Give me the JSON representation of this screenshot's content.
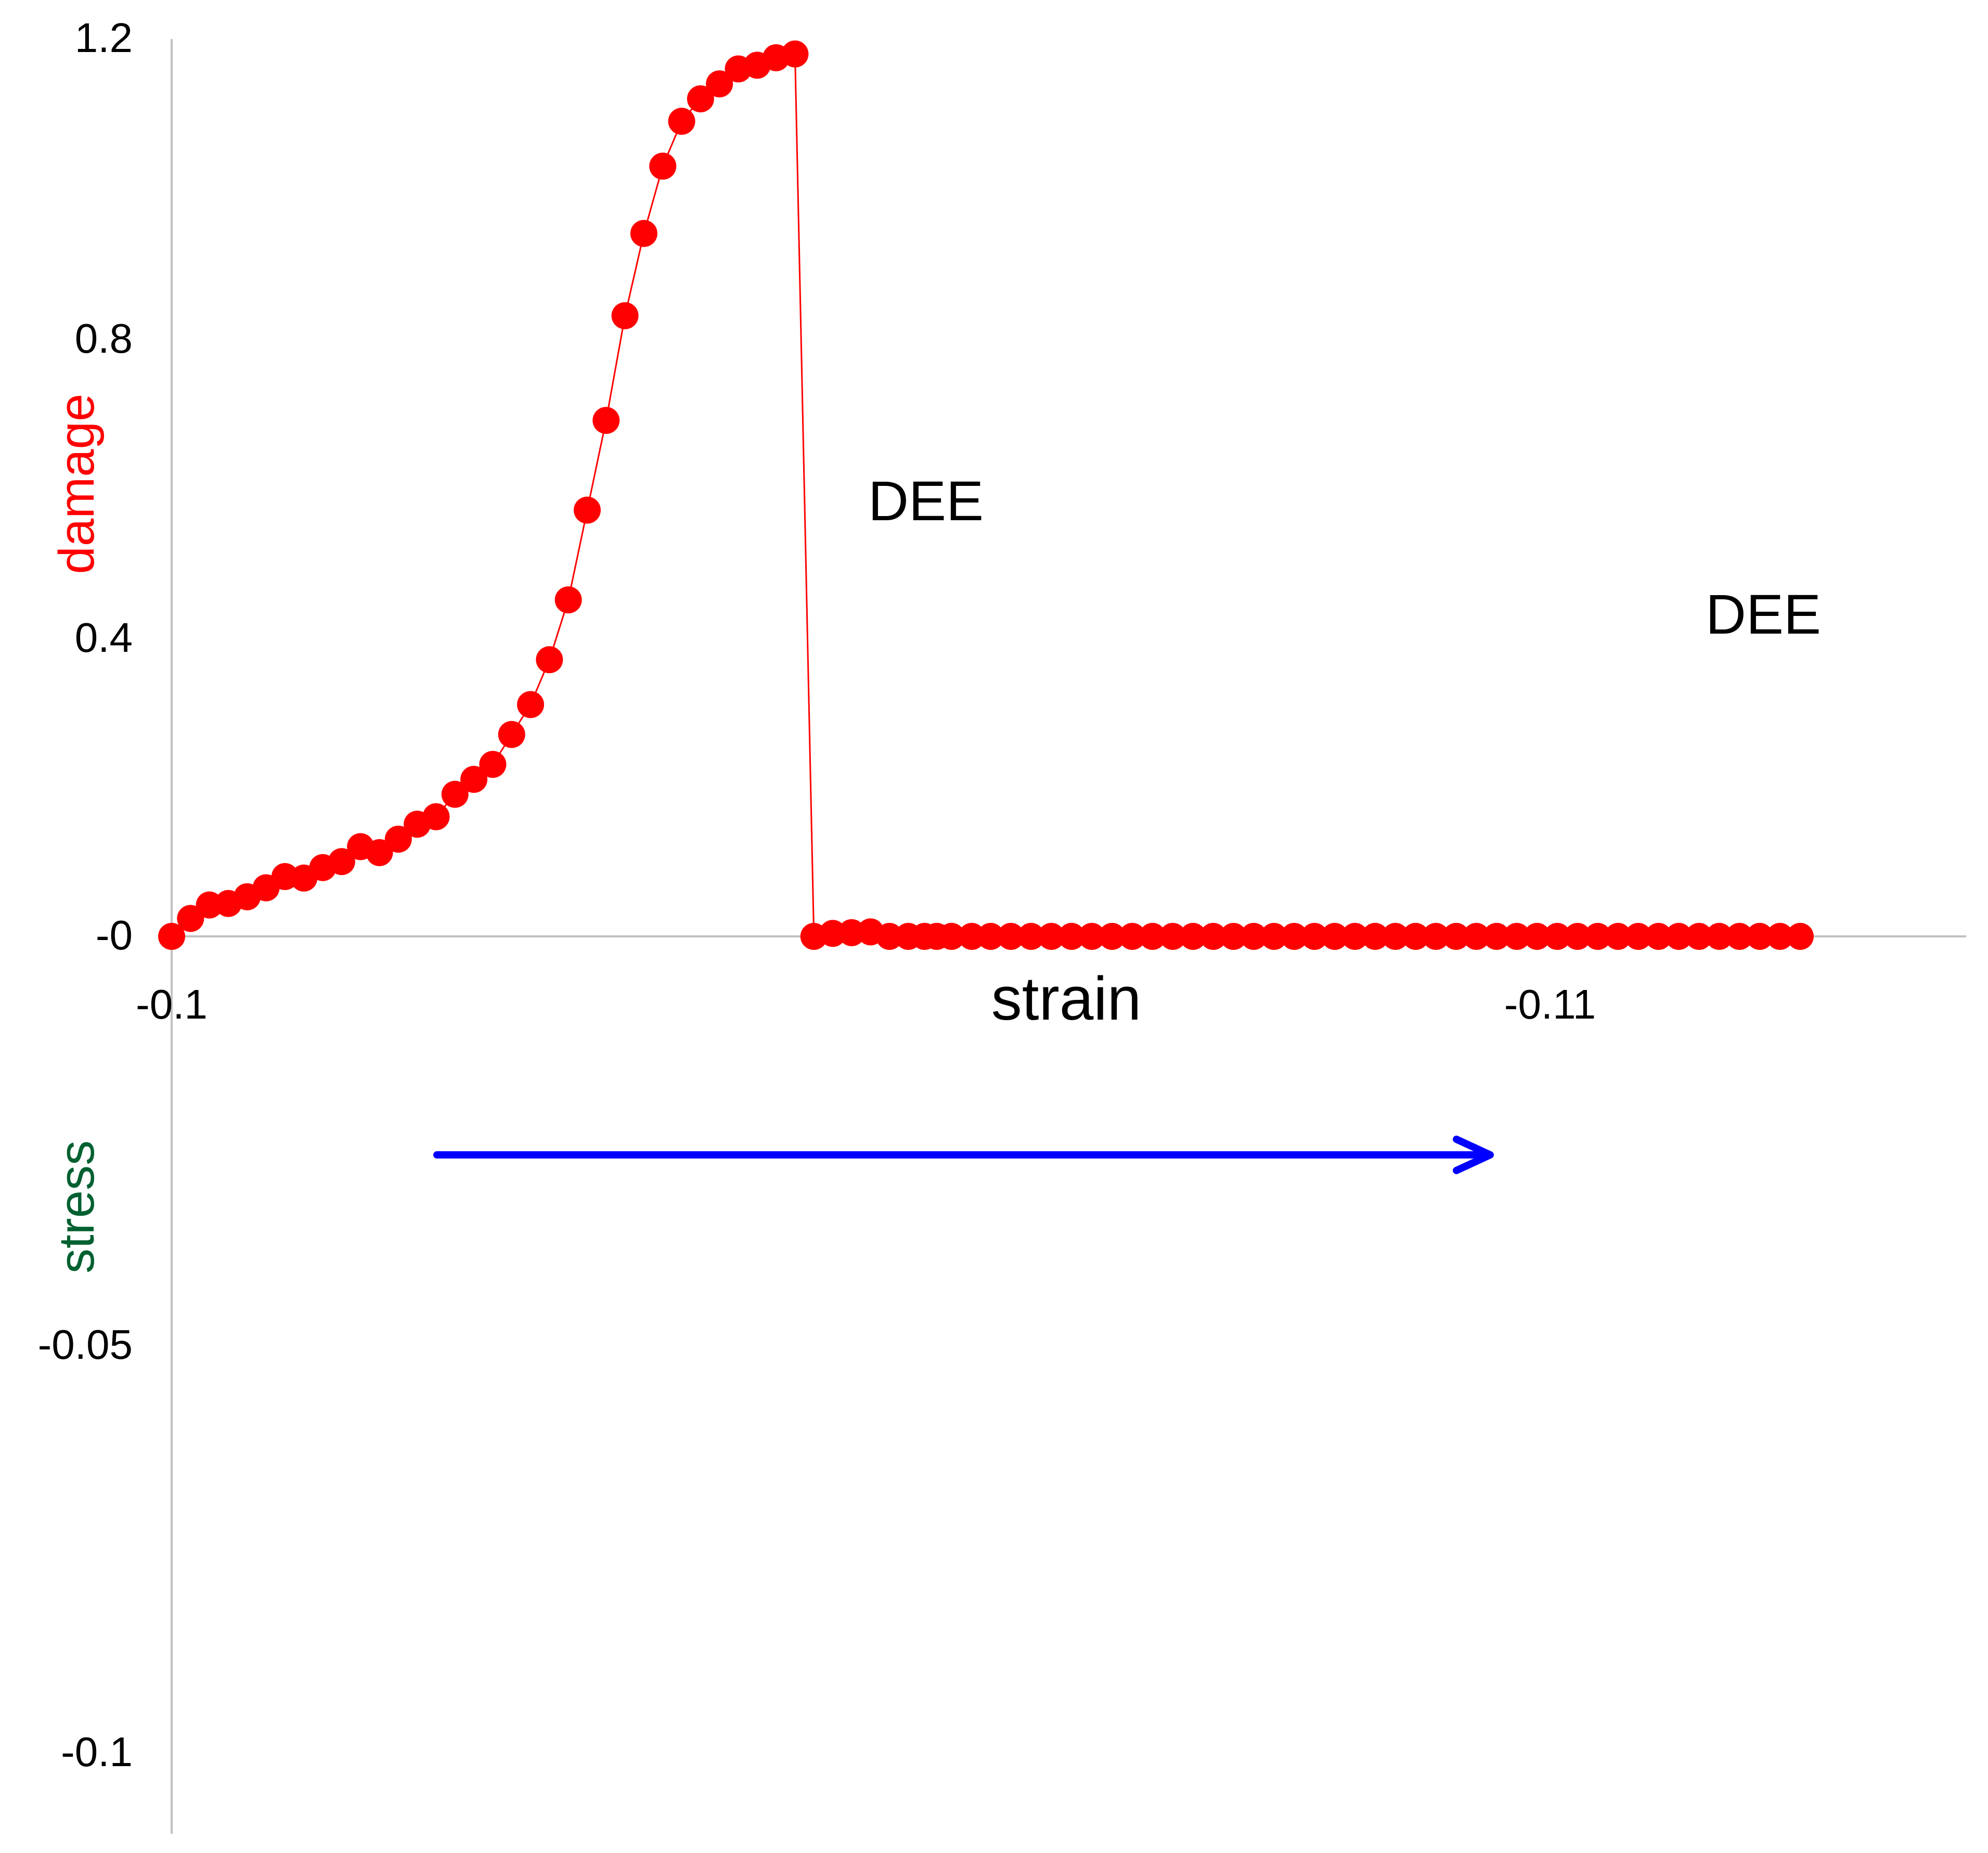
{
  "chart_data": [
    {
      "type": "scatter",
      "panel": "top",
      "ylabel": "damage",
      "xlabel": "strain",
      "xticks": [
        "-0.1",
        "-0.11"
      ],
      "yticks": [
        "-0",
        "0.4",
        "0.8",
        "1.2"
      ],
      "xlim": [
        -0.1,
        -0.1133
      ],
      "ylim": [
        0,
        1.2
      ],
      "annotations": [
        "DEE",
        "DEE"
      ],
      "colors": {
        "series": "#ff0000",
        "axis": "#c0c0c0",
        "arrow": "#0000ff"
      },
      "series": [
        {
          "x": [
            -0.1,
            -0.10014,
            -0.10028,
            -0.10042,
            -0.10056,
            -0.1007,
            -0.10084,
            -0.10098,
            -0.10112,
            -0.10126,
            -0.1014,
            -0.10154,
            -0.10168,
            -0.10182,
            -0.10196,
            -0.1021,
            -0.10224,
            -0.10238,
            -0.10252,
            -0.10266,
            -0.1028,
            -0.10294,
            -0.10308,
            -0.10322,
            -0.10336,
            -0.1035,
            -0.10364,
            -0.10378,
            -0.10392,
            -0.10406,
            -0.1042,
            -0.10434,
            -0.10448,
            -0.10462,
            -0.10476,
            -0.1049,
            -0.10504,
            -0.10518,
            -0.10532,
            -0.10546,
            -0.10558,
            -0.10567,
            -0.10578,
            -0.10593,
            -0.10607,
            -0.10622,
            -0.10637,
            -0.10652,
            -0.10667,
            -0.10682,
            -0.10697,
            -0.10712,
            -0.10727,
            -0.10742,
            -0.10757,
            -0.10772,
            -0.10787,
            -0.10802,
            -0.10817,
            -0.10832,
            -0.10847,
            -0.10862,
            -0.10877,
            -0.10892,
            -0.10907,
            -0.10922,
            -0.10937,
            -0.10952,
            -0.10967,
            -0.10982,
            -0.10997,
            -0.11012,
            -0.11027,
            -0.11042,
            -0.11057,
            -0.11072,
            -0.11087,
            -0.11102,
            -0.11117,
            -0.11132,
            -0.11147,
            -0.11162,
            -0.11177,
            -0.11192,
            -0.11207
          ],
          "y": [
            0.0,
            0.024,
            0.042,
            0.044,
            0.053,
            0.065,
            0.08,
            0.078,
            0.092,
            0.1,
            0.12,
            0.112,
            0.13,
            0.15,
            0.16,
            0.19,
            0.21,
            0.23,
            0.27,
            0.31,
            0.37,
            0.45,
            0.57,
            0.69,
            0.83,
            0.94,
            1.03,
            1.09,
            1.12,
            1.14,
            1.16,
            1.165,
            1.175,
            1.18,
            0.0,
            0.004,
            0.005,
            0.006,
            0.0,
            0.0,
            0.0,
            0.0,
            0.0,
            0.0,
            0.0,
            0.0,
            0.0,
            0.0,
            0.0,
            0.0,
            0.0,
            0.0,
            0.0,
            0.0,
            0.0,
            0.0,
            0.0,
            0.0,
            0.0,
            0.0,
            0.0,
            0.0,
            0.0,
            0.0,
            0.0,
            0.0,
            0.0,
            0.0,
            0.0,
            0.0,
            0.0,
            0.0,
            0.0,
            0.0,
            0.0,
            0.0,
            0.0,
            0.0,
            0.0,
            0.0,
            0.0,
            0.0,
            0.0,
            0.0,
            0.0
          ]
        }
      ]
    },
    {
      "type": "scatter",
      "panel": "bottom",
      "ylabel": "stress",
      "yticks": [
        "-0.05",
        "-0.1"
      ],
      "ylim": [
        -0.108,
        -0.025
      ],
      "colors": {
        "series": "#006030",
        "axis": "#c0c0c0"
      },
      "series": [
        {
          "x": [],
          "y": []
        }
      ]
    }
  ]
}
